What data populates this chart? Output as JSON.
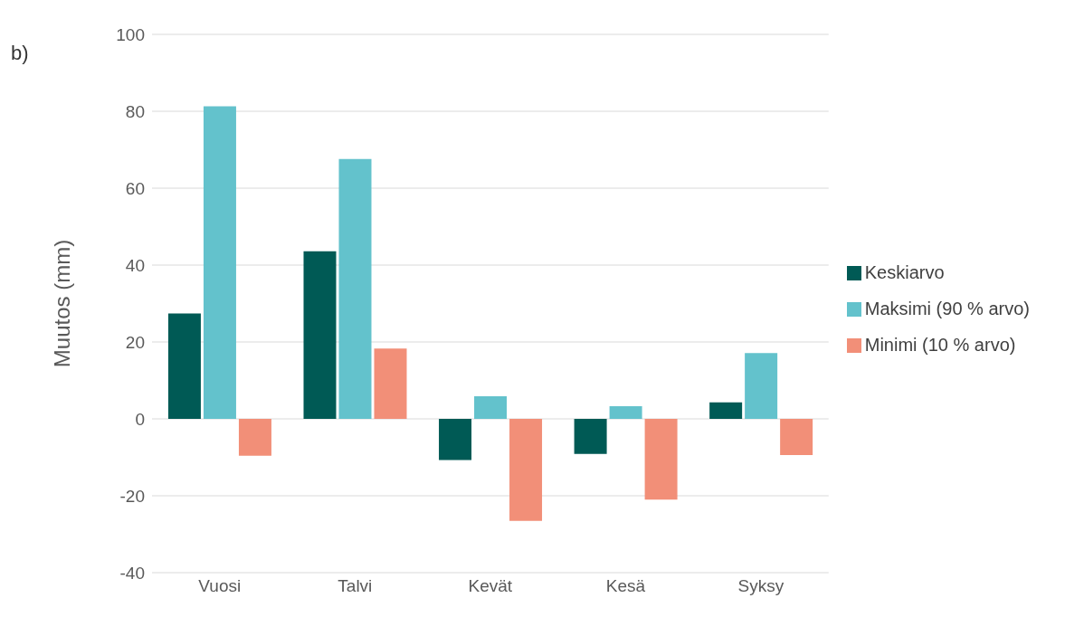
{
  "chart_data": {
    "type": "bar",
    "ylabel": "Muutos (mm)",
    "annotations": [
      "b)"
    ],
    "categories": [
      "Vuosi",
      "Talvi",
      "Kevät",
      "Kesä",
      "Syksy"
    ],
    "series": [
      {
        "name": "Keskiarvo",
        "color": "#005a55",
        "values": [
          27.4,
          43.6,
          -10.7,
          -9.1,
          4.3
        ]
      },
      {
        "name": "Maksimi (90 % arvo)",
        "color": "#63c2cc",
        "values": [
          81.3,
          67.6,
          5.9,
          3.3,
          17.1
        ]
      },
      {
        "name": "Minimi (10 % arvo)",
        "color": "#f28f78",
        "values": [
          -9.6,
          18.3,
          -26.5,
          -21,
          -9.4
        ]
      }
    ],
    "ylim": [
      -40,
      100
    ],
    "yticks": [
      -40,
      -20,
      0,
      20,
      40,
      60,
      80,
      100
    ],
    "grid": "y",
    "legend": "right"
  }
}
